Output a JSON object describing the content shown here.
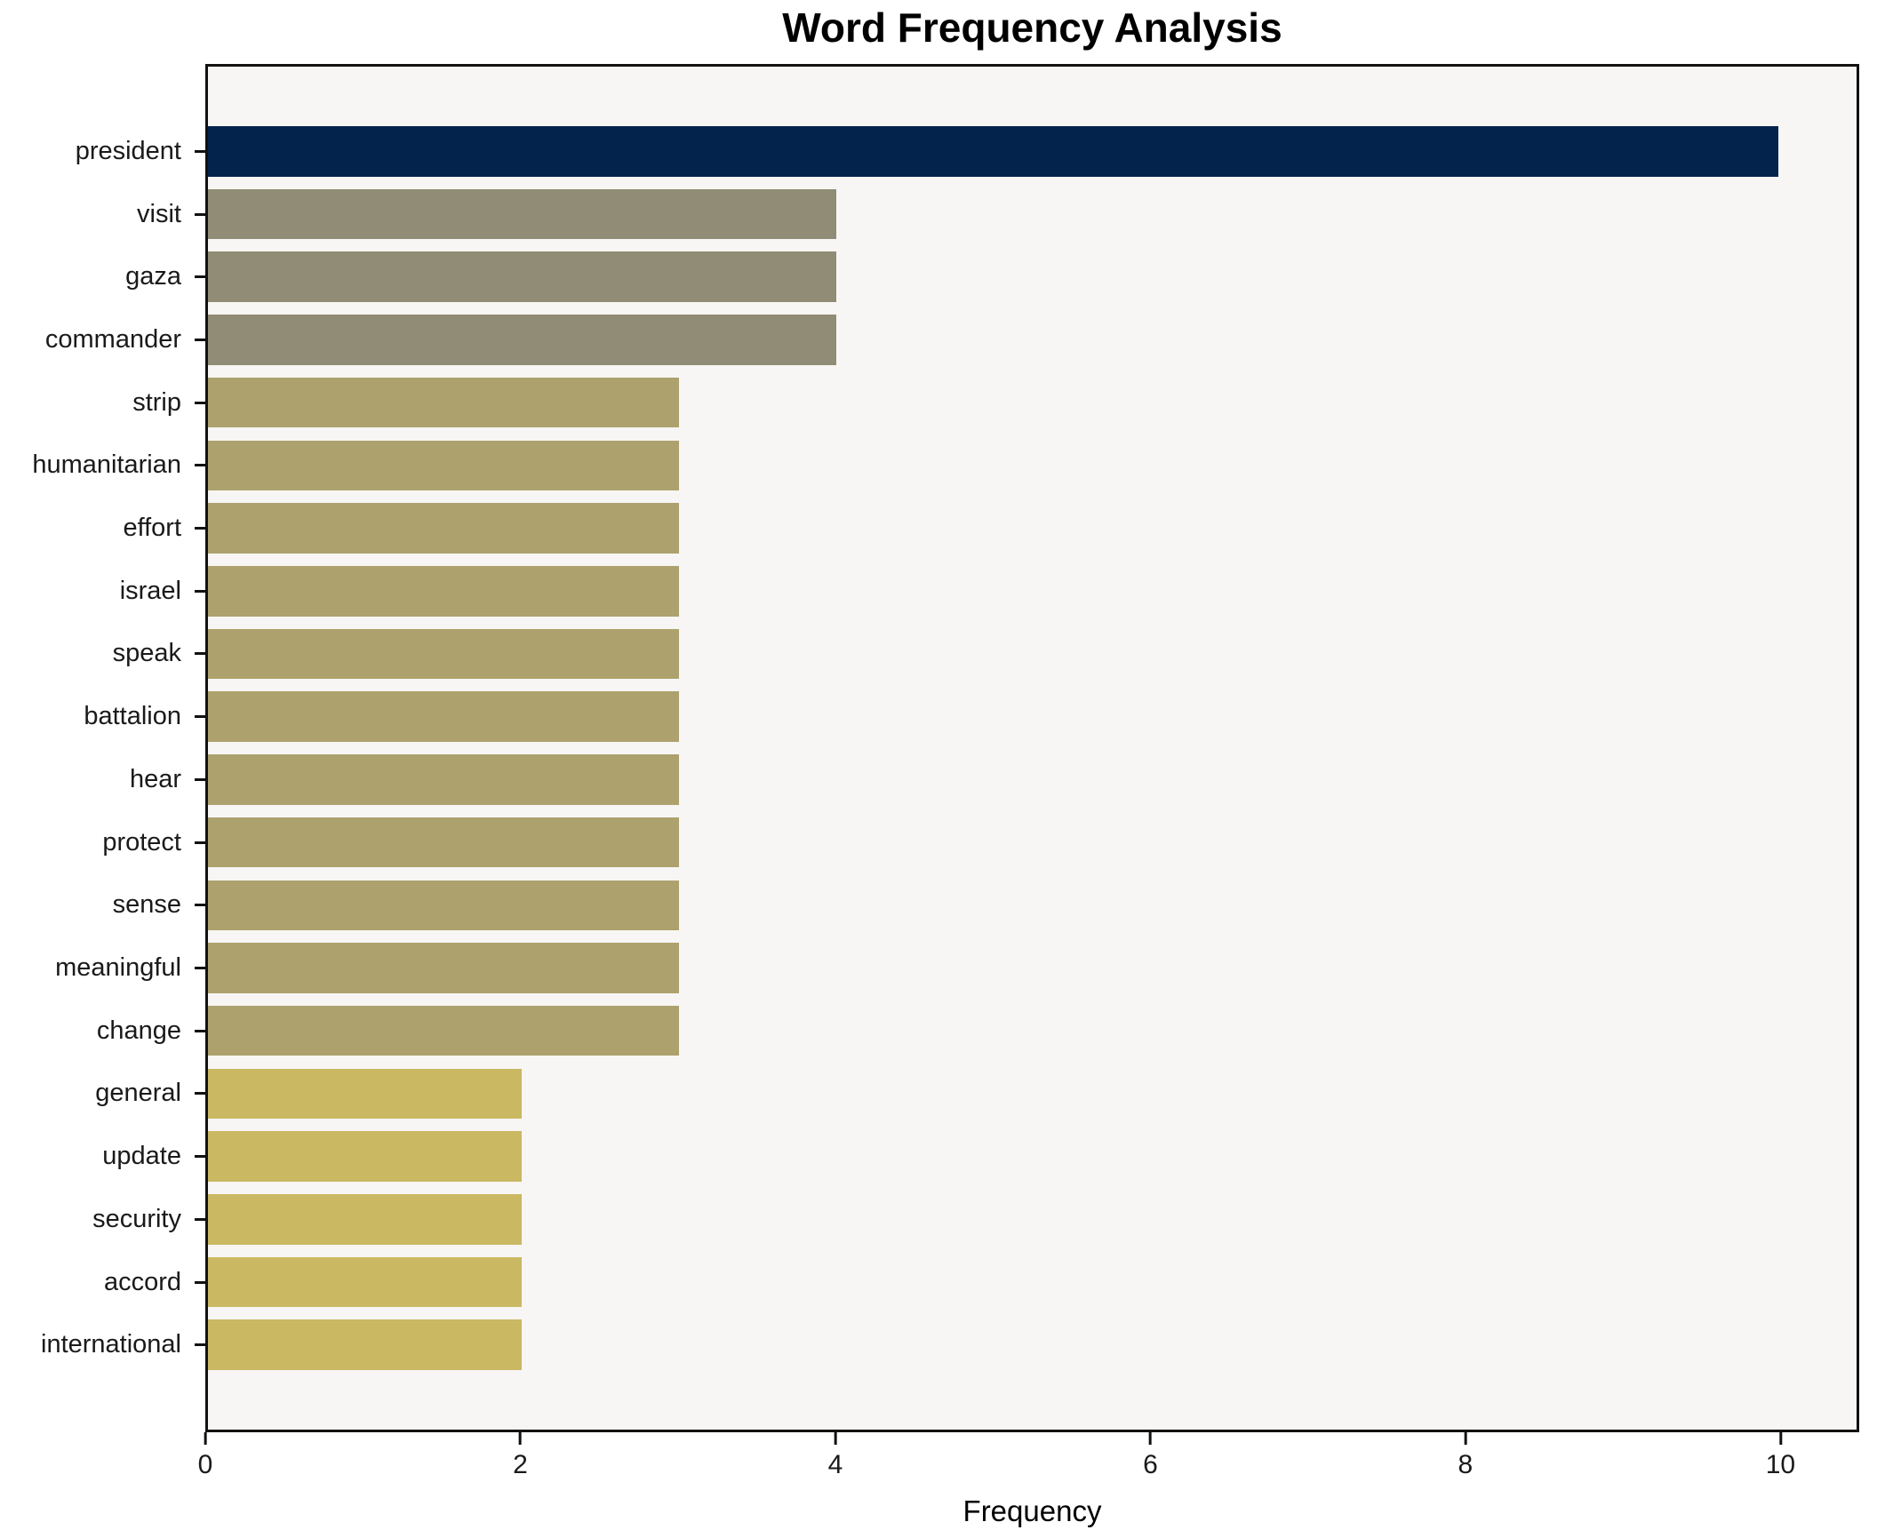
{
  "title": "Word Frequency Analysis",
  "xlabel": "Frequency",
  "chart_data": {
    "type": "bar",
    "orientation": "horizontal",
    "title": "Word Frequency Analysis",
    "xlabel": "Frequency",
    "ylabel": "",
    "categories": [
      "president",
      "visit",
      "gaza",
      "commander",
      "strip",
      "humanitarian",
      "effort",
      "israel",
      "speak",
      "battalion",
      "hear",
      "protect",
      "sense",
      "meaningful",
      "change",
      "general",
      "update",
      "security",
      "accord",
      "international"
    ],
    "values": [
      10,
      4,
      4,
      4,
      3,
      3,
      3,
      3,
      3,
      3,
      3,
      3,
      3,
      3,
      3,
      2,
      2,
      2,
      2,
      2
    ],
    "bar_colors": [
      "#03234d",
      "#918c75",
      "#918c75",
      "#918c75",
      "#ada26e",
      "#ada26e",
      "#ada26e",
      "#ada26e",
      "#ada26e",
      "#ada26e",
      "#ada26e",
      "#ada26e",
      "#ada26e",
      "#ada26e",
      "#ada26e",
      "#cab863",
      "#cab863",
      "#cab863",
      "#cab863",
      "#cab863"
    ],
    "xlim": [
      0,
      10.5
    ],
    "x_ticks": [
      0,
      2,
      4,
      6,
      8,
      10
    ],
    "grid": false,
    "legend": "none",
    "plot_background": "#f7f6f4",
    "figure_background": "#ffffff",
    "spine_color": "#111111"
  }
}
